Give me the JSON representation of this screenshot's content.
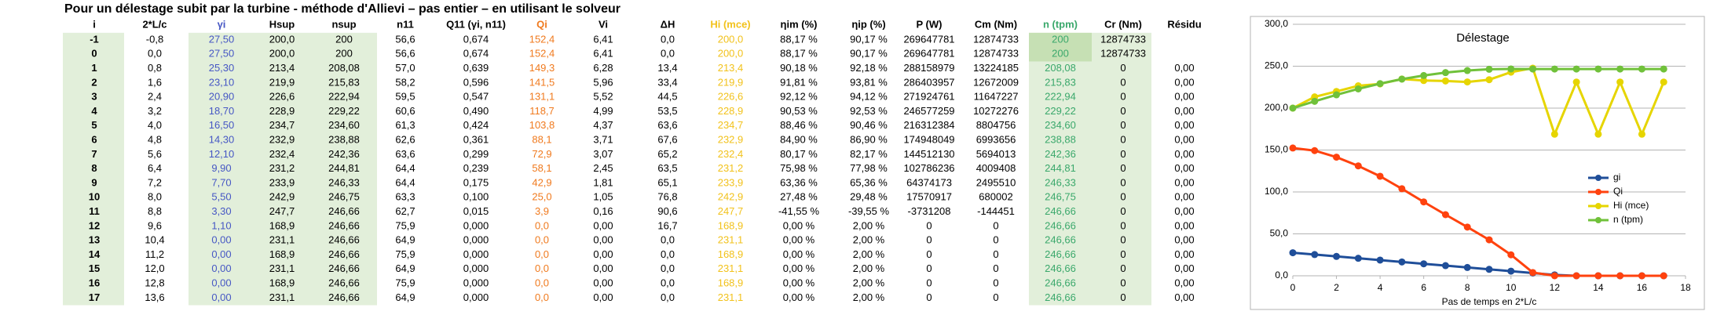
{
  "title": "Pour un délestage subit par la turbine - méthode d'Allievi – pas entier – en utilisant le solveur",
  "table": {
    "columns": [
      "i",
      "2*L/c",
      "γi",
      "Hsup",
      "nsup",
      "n11",
      "Q11 (γi, n11)",
      "Qi",
      "Vi",
      "ΔH",
      "Hi (mce)",
      "ηim (%)",
      "ηip (%)",
      "P (W)",
      "Cm (Nm)",
      "n (tpm)",
      "Cr (Nm)",
      "Résidu"
    ],
    "rows": [
      [
        "-1",
        "-0,8",
        "27,50",
        "200,0",
        "200",
        "56,6",
        "0,674",
        "152,4",
        "6,41",
        "0,0",
        "200,0",
        "88,17 %",
        "90,17 %",
        "269647781",
        "12874733",
        "200",
        "12874733"
      ],
      [
        "0",
        "0,0",
        "27,50",
        "200,0",
        "200",
        "56,6",
        "0,674",
        "152,4",
        "6,41",
        "0,0",
        "200,0",
        "88,17 %",
        "90,17 %",
        "269647781",
        "12874733",
        "200",
        "12874733"
      ],
      [
        "1",
        "0,8",
        "25,30",
        "213,4",
        "208,08",
        "57,0",
        "0,639",
        "149,3",
        "6,28",
        "13,4",
        "213,4",
        "90,18 %",
        "92,18 %",
        "288158979",
        "13224185",
        "208,08",
        "0",
        "0,00"
      ],
      [
        "2",
        "1,6",
        "23,10",
        "219,9",
        "215,83",
        "58,2",
        "0,596",
        "141,5",
        "5,96",
        "33,4",
        "219,9",
        "91,81 %",
        "93,81 %",
        "286403957",
        "12672009",
        "215,83",
        "0",
        "0,00"
      ],
      [
        "3",
        "2,4",
        "20,90",
        "226,6",
        "222,94",
        "59,5",
        "0,547",
        "131,1",
        "5,52",
        "44,5",
        "226,6",
        "92,12 %",
        "94,12 %",
        "271924761",
        "11647227",
        "222,94",
        "0",
        "0,00"
      ],
      [
        "4",
        "3,2",
        "18,70",
        "228,9",
        "229,22",
        "60,6",
        "0,490",
        "118,7",
        "4,99",
        "53,5",
        "228,9",
        "90,53 %",
        "92,53 %",
        "246577259",
        "10272276",
        "229,22",
        "0",
        "0,00"
      ],
      [
        "5",
        "4,0",
        "16,50",
        "234,7",
        "234,60",
        "61,3",
        "0,424",
        "103,8",
        "4,37",
        "63,6",
        "234,7",
        "88,46 %",
        "90,46 %",
        "216312384",
        "8804756",
        "234,60",
        "0",
        "0,00"
      ],
      [
        "6",
        "4,8",
        "14,30",
        "232,9",
        "238,88",
        "62,6",
        "0,361",
        "88,1",
        "3,71",
        "67,6",
        "232,9",
        "84,90 %",
        "86,90 %",
        "174948049",
        "6993656",
        "238,88",
        "0",
        "0,00"
      ],
      [
        "7",
        "5,6",
        "12,10",
        "232,4",
        "242,36",
        "63,6",
        "0,299",
        "72,9",
        "3,07",
        "65,2",
        "232,4",
        "80,17 %",
        "82,17 %",
        "144512130",
        "5694013",
        "242,36",
        "0",
        "0,00"
      ],
      [
        "8",
        "6,4",
        "9,90",
        "231,2",
        "244,81",
        "64,4",
        "0,239",
        "58,1",
        "2,45",
        "63,5",
        "231,2",
        "75,98 %",
        "77,98 %",
        "102786236",
        "4009408",
        "244,81",
        "0",
        "0,00"
      ],
      [
        "9",
        "7,2",
        "7,70",
        "233,9",
        "246,33",
        "64,4",
        "0,175",
        "42,9",
        "1,81",
        "65,1",
        "233,9",
        "63,36 %",
        "65,36 %",
        "64374173",
        "2495510",
        "246,33",
        "0",
        "0,00"
      ],
      [
        "10",
        "8,0",
        "5,50",
        "242,9",
        "246,75",
        "63,3",
        "0,100",
        "25,0",
        "1,05",
        "76,8",
        "242,9",
        "27,48 %",
        "29,48 %",
        "17570917",
        "680002",
        "246,75",
        "0",
        "0,00"
      ],
      [
        "11",
        "8,8",
        "3,30",
        "247,7",
        "246,66",
        "62,7",
        "0,015",
        "3,9",
        "0,16",
        "90,6",
        "247,7",
        "-41,55 %",
        "-39,55 %",
        "-3731208",
        "-144451",
        "246,66",
        "0",
        "0,00"
      ],
      [
        "12",
        "9,6",
        "1,10",
        "168,9",
        "246,66",
        "75,9",
        "0,000",
        "0,0",
        "0,00",
        "16,7",
        "168,9",
        "0,00 %",
        "2,00 %",
        "0",
        "0",
        "246,66",
        "0",
        "0,00"
      ],
      [
        "13",
        "10,4",
        "0,00",
        "231,1",
        "246,66",
        "64,9",
        "0,000",
        "0,0",
        "0,00",
        "0,0",
        "231,1",
        "0,00 %",
        "2,00 %",
        "0",
        "0",
        "246,66",
        "0",
        "0,00"
      ],
      [
        "14",
        "11,2",
        "0,00",
        "168,9",
        "246,66",
        "75,9",
        "0,000",
        "0,0",
        "0,00",
        "0,0",
        "168,9",
        "0,00 %",
        "2,00 %",
        "0",
        "0",
        "246,66",
        "0",
        "0,00"
      ],
      [
        "15",
        "12,0",
        "0,00",
        "231,1",
        "246,66",
        "64,9",
        "0,000",
        "0,0",
        "0,00",
        "0,0",
        "231,1",
        "0,00 %",
        "2,00 %",
        "0",
        "0",
        "246,66",
        "0",
        "0,00"
      ],
      [
        "16",
        "12,8",
        "0,00",
        "168,9",
        "246,66",
        "75,9",
        "0,000",
        "0,0",
        "0,00",
        "0,0",
        "168,9",
        "0,00 %",
        "2,00 %",
        "0",
        "0",
        "246,66",
        "0",
        "0,00"
      ],
      [
        "17",
        "13,6",
        "0,00",
        "231,1",
        "246,66",
        "64,9",
        "0,000",
        "0,0",
        "0,00",
        "0,0",
        "231,1",
        "0,00 %",
        "2,00 %",
        "0",
        "0",
        "246,66",
        "0",
        "0,00"
      ]
    ]
  },
  "chart_data": {
    "type": "line",
    "title": "Délestage",
    "xlabel": "Pas de temps en 2*L/c",
    "x": [
      0,
      1,
      2,
      3,
      4,
      5,
      6,
      7,
      8,
      9,
      10,
      11,
      12,
      13,
      14,
      15,
      16,
      17
    ],
    "series": [
      {
        "name": "gi",
        "color": "#1f4e99",
        "values": [
          27.5,
          25.3,
          23.1,
          20.9,
          18.7,
          16.5,
          14.3,
          12.1,
          9.9,
          7.7,
          5.5,
          3.3,
          1.1,
          0,
          0,
          0,
          0,
          0
        ]
      },
      {
        "name": "Qi",
        "color": "#ff420e",
        "values": [
          152.4,
          149.3,
          141.5,
          131.1,
          118.7,
          103.8,
          88.1,
          72.9,
          58.1,
          42.9,
          25.0,
          3.9,
          0,
          0,
          0,
          0,
          0,
          0
        ]
      },
      {
        "name": "Hi (mce)",
        "color": "#e6d500",
        "values": [
          200,
          213.4,
          219.9,
          226.6,
          228.9,
          234.7,
          232.9,
          232.4,
          231.2,
          233.9,
          242.9,
          247.7,
          168.9,
          231.1,
          168.9,
          231.1,
          168.9,
          231.1
        ]
      },
      {
        "name": "n (tpm)",
        "color": "#70c13a",
        "values": [
          200,
          208.08,
          215.83,
          222.94,
          229.22,
          234.6,
          238.88,
          242.36,
          244.81,
          246.33,
          246.75,
          246.66,
          246.66,
          246.66,
          246.66,
          246.66,
          246.66,
          246.66
        ]
      }
    ],
    "xlim": [
      0,
      18
    ],
    "xticks": [
      0,
      2,
      4,
      6,
      8,
      10,
      12,
      14,
      16,
      18
    ],
    "ylim": [
      0,
      300
    ],
    "yticks": [
      {
        "value": 0,
        "label": "0,0"
      },
      {
        "value": 50,
        "label": "50,0"
      },
      {
        "value": 100,
        "label": "100,0"
      },
      {
        "value": 150,
        "label": "150,0"
      },
      {
        "value": 200,
        "label": "200,0"
      },
      {
        "value": 250,
        "label": "250,0"
      },
      {
        "value": 300,
        "label": "300,0"
      }
    ],
    "grid": true,
    "legend": "right"
  }
}
